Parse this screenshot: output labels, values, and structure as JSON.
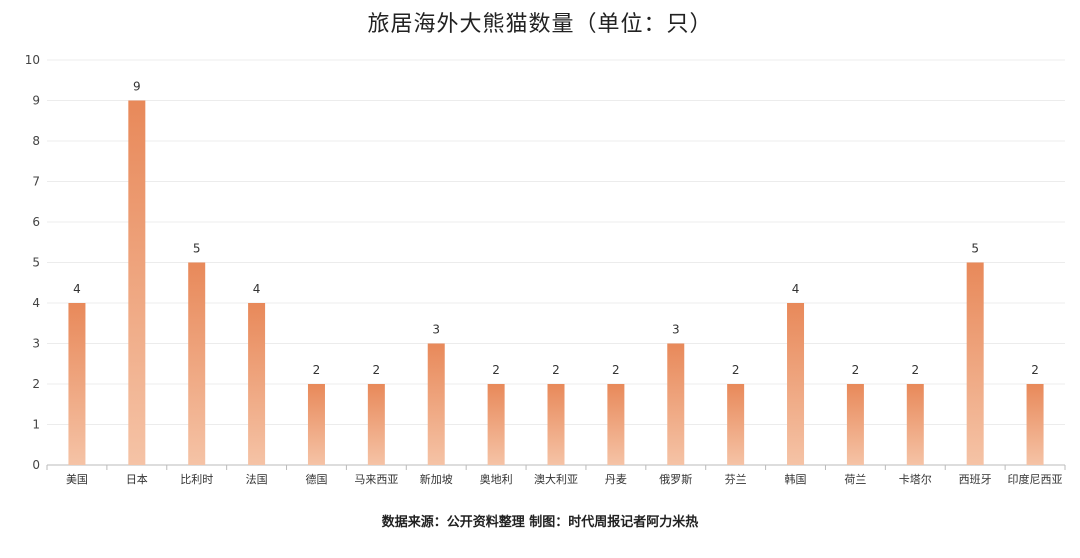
{
  "title": "旅居海外大熊猫数量（单位：只）",
  "source": "数据来源：公开资料整理 制图：时代周报记者阿力米热",
  "colors": {
    "bar_top": "#E8895A",
    "bar_bottom": "#F5C3A6",
    "grid": "#ECECEC",
    "axis": "#BBBBBB"
  },
  "chart_data": {
    "type": "bar",
    "title": "旅居海外大熊猫数量（单位：只）",
    "xlabel": "",
    "ylabel": "",
    "ylim": [
      0,
      10
    ],
    "yticks": [
      0,
      1,
      2,
      3,
      4,
      5,
      6,
      7,
      8,
      9,
      10
    ],
    "grid": true,
    "data_labels": true,
    "categories": [
      "美国",
      "日本",
      "比利时",
      "法国",
      "德国",
      "马来西亚",
      "新加坡",
      "奥地利",
      "澳大利亚",
      "丹麦",
      "俄罗斯",
      "芬兰",
      "韩国",
      "荷兰",
      "卡塔尔",
      "西班牙",
      "印度尼西亚"
    ],
    "values": [
      4,
      9,
      5,
      4,
      2,
      2,
      3,
      2,
      2,
      2,
      3,
      2,
      4,
      2,
      2,
      5,
      2
    ]
  }
}
